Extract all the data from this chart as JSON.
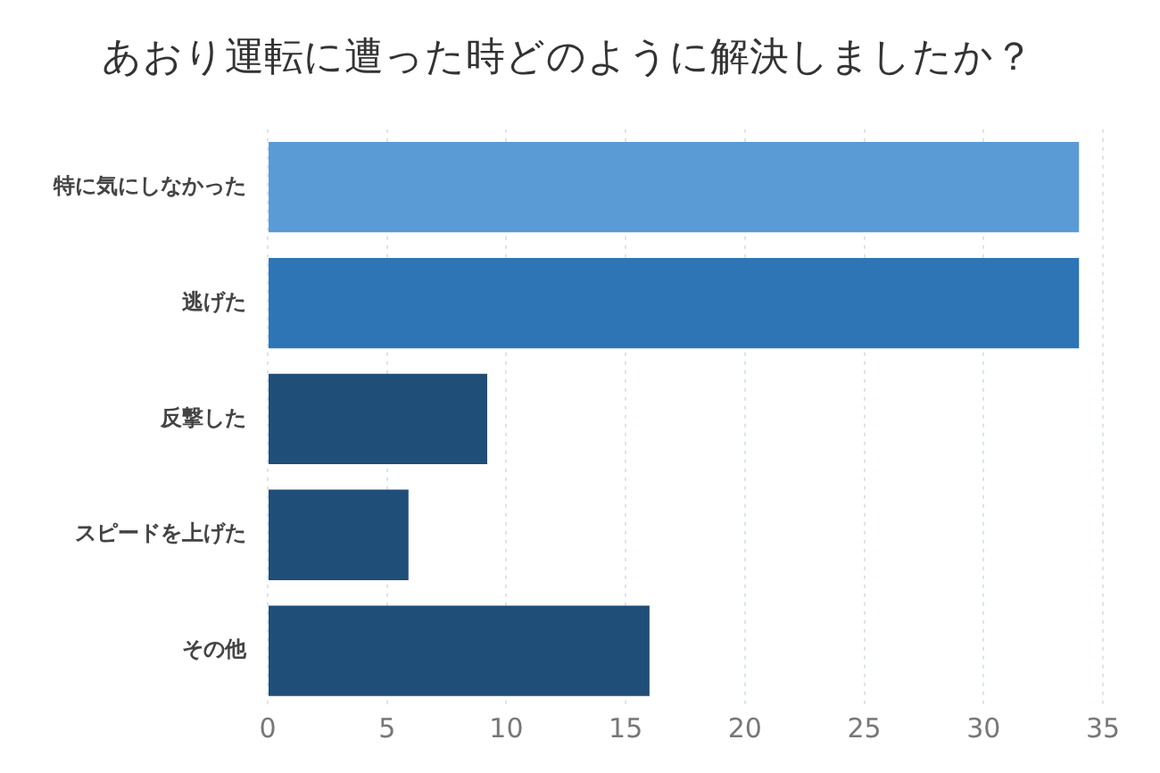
{
  "chart_data": {
    "type": "bar",
    "orientation": "horizontal",
    "title": "あおり運転に遭った時どのように解決しましたか？",
    "categories": [
      "特に気にしなかった",
      "逃げた",
      "反撃した",
      "スピードを上げた",
      "その他"
    ],
    "values": [
      34,
      34,
      9.2,
      5.9,
      16
    ],
    "colors": [
      "#5b9bd5",
      "#2e75b6",
      "#1f4e79",
      "#1f4e79",
      "#1f4e79"
    ],
    "xlim": [
      0,
      35
    ],
    "xticks": [
      0,
      5,
      10,
      15,
      20,
      25,
      30,
      35
    ],
    "grid": "x"
  }
}
